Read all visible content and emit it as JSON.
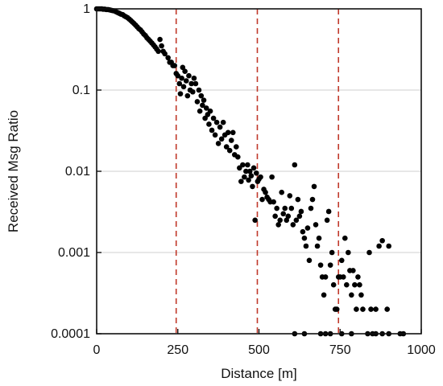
{
  "chart_data": {
    "type": "scatter",
    "title": "",
    "xlabel": "Distance [m]",
    "ylabel": "Received Msg Ratio",
    "xlim": [
      0,
      1000
    ],
    "ylim": [
      0.0001,
      1
    ],
    "y_scale": "log",
    "grid": "horizontal at y ticks",
    "x_ticks": [
      {
        "value": 0,
        "label": "0"
      },
      {
        "value": 250,
        "label": "250"
      },
      {
        "value": 500,
        "label": "500"
      },
      {
        "value": 750,
        "label": "750"
      },
      {
        "value": 1000,
        "label": "1000"
      }
    ],
    "y_ticks": [
      {
        "value": 1,
        "label": "1"
      },
      {
        "value": 0.1,
        "label": "0.1"
      },
      {
        "value": 0.01,
        "label": "0.01"
      },
      {
        "value": 0.001,
        "label": "0.001"
      },
      {
        "value": 0.0001,
        "label": "0.0001"
      }
    ],
    "reference_lines": {
      "x": [
        245,
        495,
        745
      ],
      "color": "#c0392b",
      "style": "dashed"
    },
    "series": [
      {
        "color": "#000000",
        "points": [
          [
            0,
            1
          ],
          [
            5,
            1
          ],
          [
            10,
            1
          ],
          [
            15,
            1
          ],
          [
            20,
            0.99
          ],
          [
            25,
            0.99
          ],
          [
            30,
            0.98
          ],
          [
            35,
            0.98
          ],
          [
            40,
            0.97
          ],
          [
            45,
            0.96
          ],
          [
            50,
            0.95
          ],
          [
            55,
            0.94
          ],
          [
            60,
            0.92
          ],
          [
            65,
            0.9
          ],
          [
            70,
            0.88
          ],
          [
            75,
            0.86
          ],
          [
            80,
            0.85
          ],
          [
            85,
            0.82
          ],
          [
            90,
            0.8
          ],
          [
            95,
            0.78
          ],
          [
            100,
            0.75
          ],
          [
            105,
            0.72
          ],
          [
            110,
            0.69
          ],
          [
            115,
            0.66
          ],
          [
            120,
            0.63
          ],
          [
            125,
            0.6
          ],
          [
            130,
            0.57
          ],
          [
            135,
            0.55
          ],
          [
            140,
            0.52
          ],
          [
            145,
            0.49
          ],
          [
            150,
            0.47
          ],
          [
            155,
            0.44
          ],
          [
            160,
            0.42
          ],
          [
            165,
            0.4
          ],
          [
            170,
            0.38
          ],
          [
            175,
            0.36
          ],
          [
            180,
            0.34
          ],
          [
            185,
            0.32
          ],
          [
            190,
            0.3
          ],
          [
            195,
            0.42
          ],
          [
            200,
            0.35
          ],
          [
            205,
            0.3
          ],
          [
            210,
            0.28
          ],
          [
            220,
            0.25
          ],
          [
            225,
            0.22
          ],
          [
            230,
            0.22
          ],
          [
            235,
            0.2
          ],
          [
            240,
            0.2
          ],
          [
            245,
            0.16
          ],
          [
            250,
            0.15
          ],
          [
            255,
            0.12
          ],
          [
            258,
            0.09
          ],
          [
            262,
            0.14
          ],
          [
            265,
            0.19
          ],
          [
            268,
            0.11
          ],
          [
            272,
            0.17
          ],
          [
            276,
            0.13
          ],
          [
            280,
            0.085
          ],
          [
            284,
            0.15
          ],
          [
            288,
            0.1
          ],
          [
            292,
            0.12
          ],
          [
            296,
            0.095
          ],
          [
            300,
            0.14
          ],
          [
            305,
            0.12
          ],
          [
            310,
            0.072
          ],
          [
            315,
            0.1
          ],
          [
            318,
            0.055
          ],
          [
            322,
            0.085
          ],
          [
            326,
            0.065
          ],
          [
            330,
            0.075
          ],
          [
            334,
            0.045
          ],
          [
            338,
            0.06
          ],
          [
            342,
            0.05
          ],
          [
            346,
            0.038
          ],
          [
            350,
            0.055
          ],
          [
            355,
            0.032
          ],
          [
            360,
            0.045
          ],
          [
            365,
            0.028
          ],
          [
            370,
            0.04
          ],
          [
            375,
            0.022
          ],
          [
            380,
            0.035
          ],
          [
            385,
            0.025
          ],
          [
            390,
            0.04
          ],
          [
            395,
            0.028
          ],
          [
            400,
            0.02
          ],
          [
            405,
            0.03
          ],
          [
            410,
            0.018
          ],
          [
            415,
            0.024
          ],
          [
            420,
            0.03
          ],
          [
            425,
            0.016
          ],
          [
            430,
            0.02
          ],
          [
            435,
            0.015
          ],
          [
            440,
            0.011
          ],
          [
            445,
            0.0075
          ],
          [
            450,
            0.012
          ],
          [
            455,
            0.0085
          ],
          [
            460,
            0.01
          ],
          [
            465,
            0.012
          ],
          [
            468,
            0.0078
          ],
          [
            472,
            0.01
          ],
          [
            476,
            0.0088
          ],
          [
            480,
            0.0065
          ],
          [
            484,
            0.011
          ],
          [
            488,
            0.0025
          ],
          [
            492,
            0.0095
          ],
          [
            496,
            0.0075
          ],
          [
            500,
            0.008
          ],
          [
            505,
            0.0085
          ],
          [
            510,
            0.0045
          ],
          [
            515,
            0.006
          ],
          [
            520,
            0.0055
          ],
          [
            525,
            0.0048
          ],
          [
            530,
            0.0045
          ],
          [
            535,
            0.0042
          ],
          [
            540,
            0.0085
          ],
          [
            545,
            0.0042
          ],
          [
            550,
            0.0028
          ],
          [
            555,
            0.0035
          ],
          [
            560,
            0.0022
          ],
          [
            565,
            0.0025
          ],
          [
            570,
            0.0055
          ],
          [
            575,
            0.003
          ],
          [
            580,
            0.0035
          ],
          [
            585,
            0.0025
          ],
          [
            590,
            0.0028
          ],
          [
            595,
            0.005
          ],
          [
            600,
            0.0035
          ],
          [
            605,
            0.0022
          ],
          [
            610,
            0.012
          ],
          [
            615,
            0.0025
          ],
          [
            620,
            0.0045
          ],
          [
            625,
            0.0028
          ],
          [
            630,
            0.0032
          ],
          [
            635,
            0.0018
          ],
          [
            640,
            0.0015
          ],
          [
            645,
            0.0012
          ],
          [
            650,
            0.002
          ],
          [
            655,
            0.0008
          ],
          [
            660,
            0.0035
          ],
          [
            665,
            0.0045
          ],
          [
            670,
            0.0065
          ],
          [
            675,
            0.0022
          ],
          [
            680,
            0.0012
          ],
          [
            685,
            0.0015
          ],
          [
            690,
            0.0007
          ],
          [
            695,
            0.0005
          ],
          [
            700,
            0.0003
          ],
          [
            705,
            0.0005
          ],
          [
            710,
            0.0025
          ],
          [
            715,
            0.0032
          ],
          [
            720,
            0.0007
          ],
          [
            725,
            0.001
          ],
          [
            730,
            0.0004
          ],
          [
            735,
            0.0002
          ],
          [
            740,
            0.0002
          ],
          [
            745,
            0.0005
          ],
          [
            750,
            0.0005
          ],
          [
            755,
            0.0008
          ],
          [
            760,
            0.0005
          ],
          [
            765,
            0.0015
          ],
          [
            770,
            0.0004
          ],
          [
            775,
            0.001
          ],
          [
            780,
            0.0006
          ],
          [
            785,
            0.0003
          ],
          [
            790,
            0.0006
          ],
          [
            795,
            0.0004
          ],
          [
            800,
            0.0002
          ],
          [
            805,
            0.0005
          ],
          [
            810,
            0.0004
          ],
          [
            815,
            0.0003
          ],
          [
            820,
            0.0002
          ],
          [
            840,
            0.001
          ],
          [
            845,
            0.0002
          ],
          [
            860,
            0.0002
          ],
          [
            870,
            0.0012
          ],
          [
            880,
            0.0014
          ],
          [
            895,
            0.0002
          ],
          [
            900,
            0.0012
          ],
          [
            610,
            0.0001
          ],
          [
            640,
            0.0001
          ],
          [
            690,
            0.0001
          ],
          [
            705,
            0.0001
          ],
          [
            720,
            0.0001
          ],
          [
            755,
            0.0001
          ],
          [
            785,
            0.0001
          ],
          [
            835,
            0.0001
          ],
          [
            850,
            0.0001
          ],
          [
            860,
            0.0001
          ],
          [
            880,
            0.0001
          ],
          [
            900,
            0.0001
          ],
          [
            935,
            0.0001
          ],
          [
            945,
            0.0001
          ]
        ]
      }
    ]
  }
}
